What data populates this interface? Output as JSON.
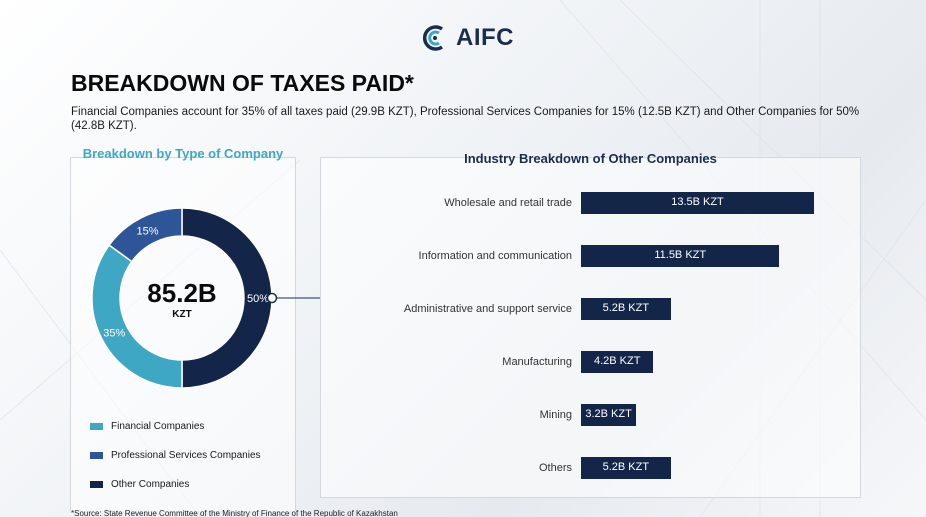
{
  "brand": {
    "name": "AIFC"
  },
  "header": {
    "title": "BREAKDOWN OF TAXES PAID*",
    "subtitle": "Financial Companies account for 35% of all taxes paid (29.9B KZT), Professional Services Companies for 15% (12.5B KZT) and Other Companies for 50% (42.8B KZT)."
  },
  "chart_data": [
    {
      "type": "pie",
      "title": "Breakdown by Type of Company",
      "center_value": "85.2B",
      "center_unit": "KZT",
      "slices": [
        {
          "name": "Other Companies",
          "value": 50,
          "label": "50%",
          "color": "#14254a"
        },
        {
          "name": "Financial Companies",
          "value": 35,
          "label": "35%",
          "color": "#3ea7c4"
        },
        {
          "name": "Professional Services Companies",
          "value": 15,
          "label": "15%",
          "color": "#2e5597"
        }
      ],
      "legend": [
        {
          "name": "Financial Companies",
          "color": "#3ea7c4"
        },
        {
          "name": "Professional Services Companies",
          "color": "#2e5597"
        },
        {
          "name": "Other Companies",
          "color": "#14254a"
        }
      ],
      "legend_placement": "bottom"
    },
    {
      "type": "bar",
      "orientation": "horizontal",
      "title": "Industry Breakdown of Other Companies",
      "categories": [
        "Wholesale and retail trade",
        "Information and communication",
        "Administrative and support service",
        "Manufacturing",
        "Mining",
        "Others"
      ],
      "values": [
        13.5,
        11.5,
        5.2,
        4.2,
        3.2,
        5.2
      ],
      "value_labels": [
        "13.5B KZT",
        "11.5B KZT",
        "5.2B KZT",
        "4.2B KZT",
        "3.2B KZT",
        "5.2B KZT"
      ],
      "color": "#14254a",
      "grid": false
    }
  ],
  "footer": {
    "source": "*Source: State Revenue Committee of the Ministry of Finance of the Republic of Kazakhstan"
  }
}
